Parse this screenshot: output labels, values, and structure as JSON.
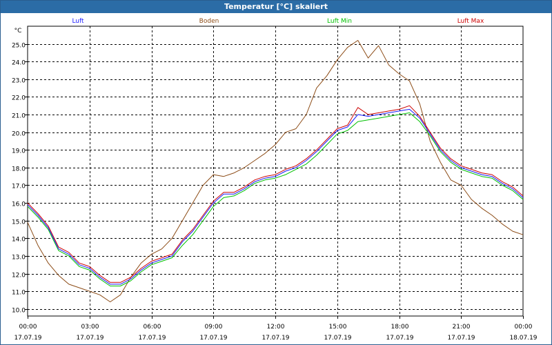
{
  "window": {
    "title": "Temperatur [°C] skaliert"
  },
  "chart_data": {
    "type": "line",
    "title": "Temperatur [°C] skaliert",
    "ylabel": "°C",
    "xlabel": "",
    "ylim": [
      9.6,
      26.0
    ],
    "yticks": [
      10.0,
      11.0,
      12.0,
      13.0,
      14.0,
      15.0,
      16.0,
      17.0,
      18.0,
      19.0,
      20.0,
      21.0,
      22.0,
      23.0,
      24.0,
      25.0
    ],
    "xlim": [
      0,
      24
    ],
    "xticks": [
      {
        "time": "00:00",
        "date": "17.07.19",
        "h": 0
      },
      {
        "time": "03:00",
        "date": "17.07.19",
        "h": 3
      },
      {
        "time": "06:00",
        "date": "17.07.19",
        "h": 6
      },
      {
        "time": "09:00",
        "date": "17.07.19",
        "h": 9
      },
      {
        "time": "12:00",
        "date": "17.07.19",
        "h": 12
      },
      {
        "time": "15:00",
        "date": "17.07.19",
        "h": 15
      },
      {
        "time": "18:00",
        "date": "17.07.19",
        "h": 18
      },
      {
        "time": "21:00",
        "date": "17.07.19",
        "h": 21
      },
      {
        "time": "00:00",
        "date": "18.07.19",
        "h": 24
      }
    ],
    "grid": true,
    "legend_position": "top",
    "series": [
      {
        "name": "Luft",
        "color": "#1a1aff",
        "x": [
          0,
          0.5,
          1,
          1.5,
          2,
          2.5,
          3,
          3.5,
          4,
          4.5,
          5,
          5.5,
          6,
          6.5,
          7,
          7.5,
          8,
          8.5,
          9,
          9.5,
          10,
          10.5,
          11,
          11.5,
          12,
          12.5,
          13,
          13.5,
          14,
          14.5,
          15,
          15.5,
          16,
          16.5,
          17,
          17.5,
          18,
          18.5,
          19,
          19.5,
          20,
          20.5,
          21,
          21.5,
          22,
          22.5,
          23,
          23.5,
          24
        ],
        "y": [
          15.9,
          15.3,
          14.6,
          13.4,
          13.1,
          12.5,
          12.3,
          11.8,
          11.4,
          11.4,
          11.7,
          12.2,
          12.6,
          12.8,
          13.0,
          13.8,
          14.4,
          15.2,
          16.0,
          16.5,
          16.5,
          16.8,
          17.2,
          17.4,
          17.5,
          17.8,
          18.0,
          18.4,
          18.9,
          19.5,
          20.1,
          20.3,
          21.0,
          20.9,
          21.0,
          21.1,
          21.2,
          21.3,
          20.8,
          19.9,
          19.0,
          18.4,
          18.0,
          17.8,
          17.6,
          17.5,
          17.1,
          16.8,
          16.3
        ]
      },
      {
        "name": "Boden",
        "color": "#8b4a14",
        "x": [
          0,
          0.5,
          1,
          1.5,
          2,
          2.5,
          3,
          3.5,
          4,
          4.5,
          5,
          5.5,
          6,
          6.5,
          7,
          7.5,
          8,
          8.5,
          9,
          9.5,
          10,
          10.5,
          11,
          11.5,
          12,
          12.5,
          13,
          13.5,
          14,
          14.5,
          15,
          15.5,
          16,
          16.5,
          17,
          17.5,
          18,
          18.5,
          19,
          19.5,
          20,
          20.5,
          21,
          21.5,
          22,
          22.5,
          23,
          23.5,
          24
        ],
        "y": [
          14.9,
          13.6,
          12.6,
          11.9,
          11.4,
          11.2,
          11.0,
          10.8,
          10.4,
          10.8,
          11.8,
          12.6,
          13.1,
          13.4,
          14.0,
          15.0,
          16.0,
          17.0,
          17.6,
          17.5,
          17.7,
          18.0,
          18.4,
          18.8,
          19.3,
          20.0,
          20.2,
          21.0,
          22.5,
          23.2,
          24.1,
          24.8,
          25.2,
          24.2,
          24.9,
          23.8,
          23.3,
          22.9,
          21.6,
          19.5,
          18.3,
          17.3,
          17.0,
          16.2,
          15.7,
          15.3,
          14.8,
          14.4,
          14.2
        ]
      },
      {
        "name": "Luft Min",
        "color": "#00c000",
        "x": [
          0,
          0.5,
          1,
          1.5,
          2,
          2.5,
          3,
          3.5,
          4,
          4.5,
          5,
          5.5,
          6,
          6.5,
          7,
          7.5,
          8,
          8.5,
          9,
          9.5,
          10,
          10.5,
          11,
          11.5,
          12,
          12.5,
          13,
          13.5,
          14,
          14.5,
          15,
          15.5,
          16,
          16.5,
          17,
          17.5,
          18,
          18.5,
          19,
          19.5,
          20,
          20.5,
          21,
          21.5,
          22,
          22.5,
          23,
          23.5,
          24
        ],
        "y": [
          15.8,
          15.2,
          14.5,
          13.3,
          13.0,
          12.4,
          12.2,
          11.7,
          11.3,
          11.3,
          11.6,
          12.1,
          12.5,
          12.7,
          12.9,
          13.6,
          14.2,
          15.0,
          15.8,
          16.3,
          16.4,
          16.7,
          17.1,
          17.3,
          17.4,
          17.6,
          17.9,
          18.2,
          18.7,
          19.3,
          19.9,
          20.1,
          20.6,
          20.7,
          20.8,
          20.9,
          21.0,
          21.1,
          20.6,
          19.8,
          18.9,
          18.3,
          17.9,
          17.7,
          17.5,
          17.4,
          17.0,
          16.7,
          16.2
        ]
      },
      {
        "name": "Luft Max",
        "color": "#cc0000",
        "x": [
          0,
          0.5,
          1,
          1.5,
          2,
          2.5,
          3,
          3.5,
          4,
          4.5,
          5,
          5.5,
          6,
          6.5,
          7,
          7.5,
          8,
          8.5,
          9,
          9.5,
          10,
          10.5,
          11,
          11.5,
          12,
          12.5,
          13,
          13.5,
          14,
          14.5,
          15,
          15.5,
          16,
          16.5,
          17,
          17.5,
          18,
          18.5,
          19,
          19.5,
          20,
          20.5,
          21,
          21.5,
          22,
          22.5,
          23,
          23.5,
          24
        ],
        "y": [
          16.0,
          15.4,
          14.7,
          13.5,
          13.2,
          12.6,
          12.4,
          11.9,
          11.5,
          11.5,
          11.8,
          12.3,
          12.7,
          12.9,
          13.1,
          13.9,
          14.5,
          15.3,
          16.1,
          16.6,
          16.6,
          16.9,
          17.3,
          17.5,
          17.6,
          17.9,
          18.1,
          18.5,
          19.0,
          19.6,
          20.2,
          20.4,
          21.4,
          21.0,
          21.1,
          21.2,
          21.3,
          21.5,
          20.9,
          20.0,
          19.1,
          18.5,
          18.1,
          17.9,
          17.7,
          17.6,
          17.2,
          16.9,
          16.4
        ]
      }
    ]
  }
}
